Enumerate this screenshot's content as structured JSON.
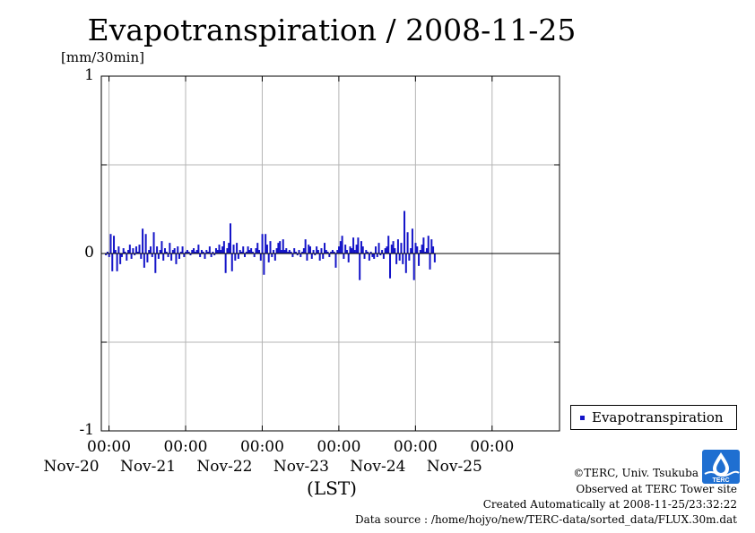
{
  "chart_data": {
    "type": "bar",
    "title": "Evapotranspiration / 2008-11-25",
    "ylabel": "[mm/30min]",
    "xlabel": "(LST)",
    "ylim": [
      -1,
      1
    ],
    "yticks": [
      {
        "value": 1,
        "label": "1"
      },
      {
        "value": 0,
        "label": "0"
      },
      {
        "value": -1,
        "label": "-1"
      }
    ],
    "xlim_days": [
      -0.1,
      5.88
    ],
    "xticks": [
      {
        "day": 0,
        "time": "00:00",
        "date": "Nov-20"
      },
      {
        "day": 1,
        "time": "00:00",
        "date": "Nov-21"
      },
      {
        "day": 2,
        "time": "00:00",
        "date": "Nov-22"
      },
      {
        "day": 3,
        "time": "00:00",
        "date": "Nov-23"
      },
      {
        "day": 4,
        "time": "00:00",
        "date": "Nov-24"
      },
      {
        "day": 5,
        "time": "00:00",
        "date": "Nov-25"
      }
    ],
    "series": [
      {
        "name": "Evapotranspiration",
        "color": "#1414c8",
        "interval_hours": 0.5,
        "values": [
          -0.01,
          0.01,
          -0.02,
          0.11,
          -0.1,
          0.1,
          0.02,
          -0.1,
          0.04,
          -0.06,
          -0.02,
          0.03,
          0.01,
          -0.04,
          0.02,
          0.05,
          -0.03,
          0.03,
          -0.01,
          0.04,
          0.01,
          0.05,
          -0.03,
          0.14,
          -0.08,
          0.11,
          -0.05,
          0.02,
          0.04,
          -0.02,
          0.12,
          -0.11,
          0.04,
          -0.03,
          0.02,
          0.07,
          -0.04,
          0.03,
          0.01,
          -0.02,
          0.06,
          -0.04,
          0.02,
          0.03,
          -0.06,
          0.04,
          -0.03,
          0.01,
          0.04,
          -0.02,
          0.01,
          0.02,
          0.01,
          -0.01,
          0.02,
          0.03,
          0.01,
          0.02,
          0.05,
          -0.02,
          0.02,
          0.01,
          -0.03,
          0.02,
          0.01,
          0.04,
          -0.02,
          0.01,
          -0.01,
          0.03,
          0.02,
          0.05,
          0.02,
          0.04,
          0.07,
          -0.11,
          0.03,
          0.06,
          0.17,
          -0.1,
          0.05,
          -0.04,
          0.06,
          -0.03,
          0.02,
          0.01,
          0.04,
          -0.02,
          0.01,
          0.04,
          0.02,
          0.03,
          0.01,
          -0.02,
          0.03,
          0.06,
          0.02,
          -0.04,
          0.11,
          -0.12,
          0.11,
          0.05,
          -0.05,
          0.07,
          -0.02,
          0.02,
          -0.04,
          0.03,
          0.06,
          0.07,
          0.02,
          0.08,
          0.02,
          0.03,
          0.01,
          0.02,
          0.01,
          -0.02,
          0.03,
          0.01,
          -0.01,
          0.02,
          -0.02,
          0.01,
          0.03,
          0.08,
          -0.04,
          0.05,
          0.04,
          -0.03,
          0.02,
          -0.01,
          0.04,
          0.02,
          -0.04,
          0.03,
          -0.03,
          0.06,
          0.02,
          0.01,
          -0.02,
          0.01,
          0.02,
          0.01,
          -0.08,
          0.02,
          0.04,
          0.07,
          0.1,
          -0.03,
          0.05,
          0.02,
          -0.05,
          0.04,
          0.03,
          0.09,
          0.02,
          0.05,
          0.09,
          -0.15,
          0.07,
          0.04,
          -0.03,
          0.02,
          0.01,
          -0.04,
          0.01,
          -0.02,
          -0.03,
          0.04,
          -0.02,
          0.06,
          -0.01,
          0.02,
          -0.03,
          0.03,
          0.04,
          0.1,
          -0.14,
          0.05,
          0.07,
          0.03,
          -0.06,
          0.08,
          -0.04,
          0.06,
          -0.06,
          0.24,
          -0.11,
          0.12,
          -0.04,
          0.03,
          0.14,
          -0.15,
          0.06,
          0.04,
          -0.07,
          0.02,
          0.05,
          0.09,
          0.01,
          0.03,
          0.1,
          -0.09,
          0.08,
          0.04,
          -0.05
        ]
      }
    ]
  },
  "legend": {
    "label": "Evapotranspiration",
    "swatch_color": "#1414c8"
  },
  "footer": {
    "copyright": "©TERC, Univ. Tsukuba",
    "site": "Observed at TERC Tower site",
    "created": "Created Automatically at 2008-11-25/23:32:22",
    "source": "Data source : /home/hojyo/new/TERC-data/sorted_data/FLUX.30m.dat",
    "logo_text": "TERC"
  },
  "colors": {
    "bar": "#1414c8",
    "grid": "#b4b4b4",
    "axis": "#000000",
    "logo": "#1f6fd1"
  }
}
